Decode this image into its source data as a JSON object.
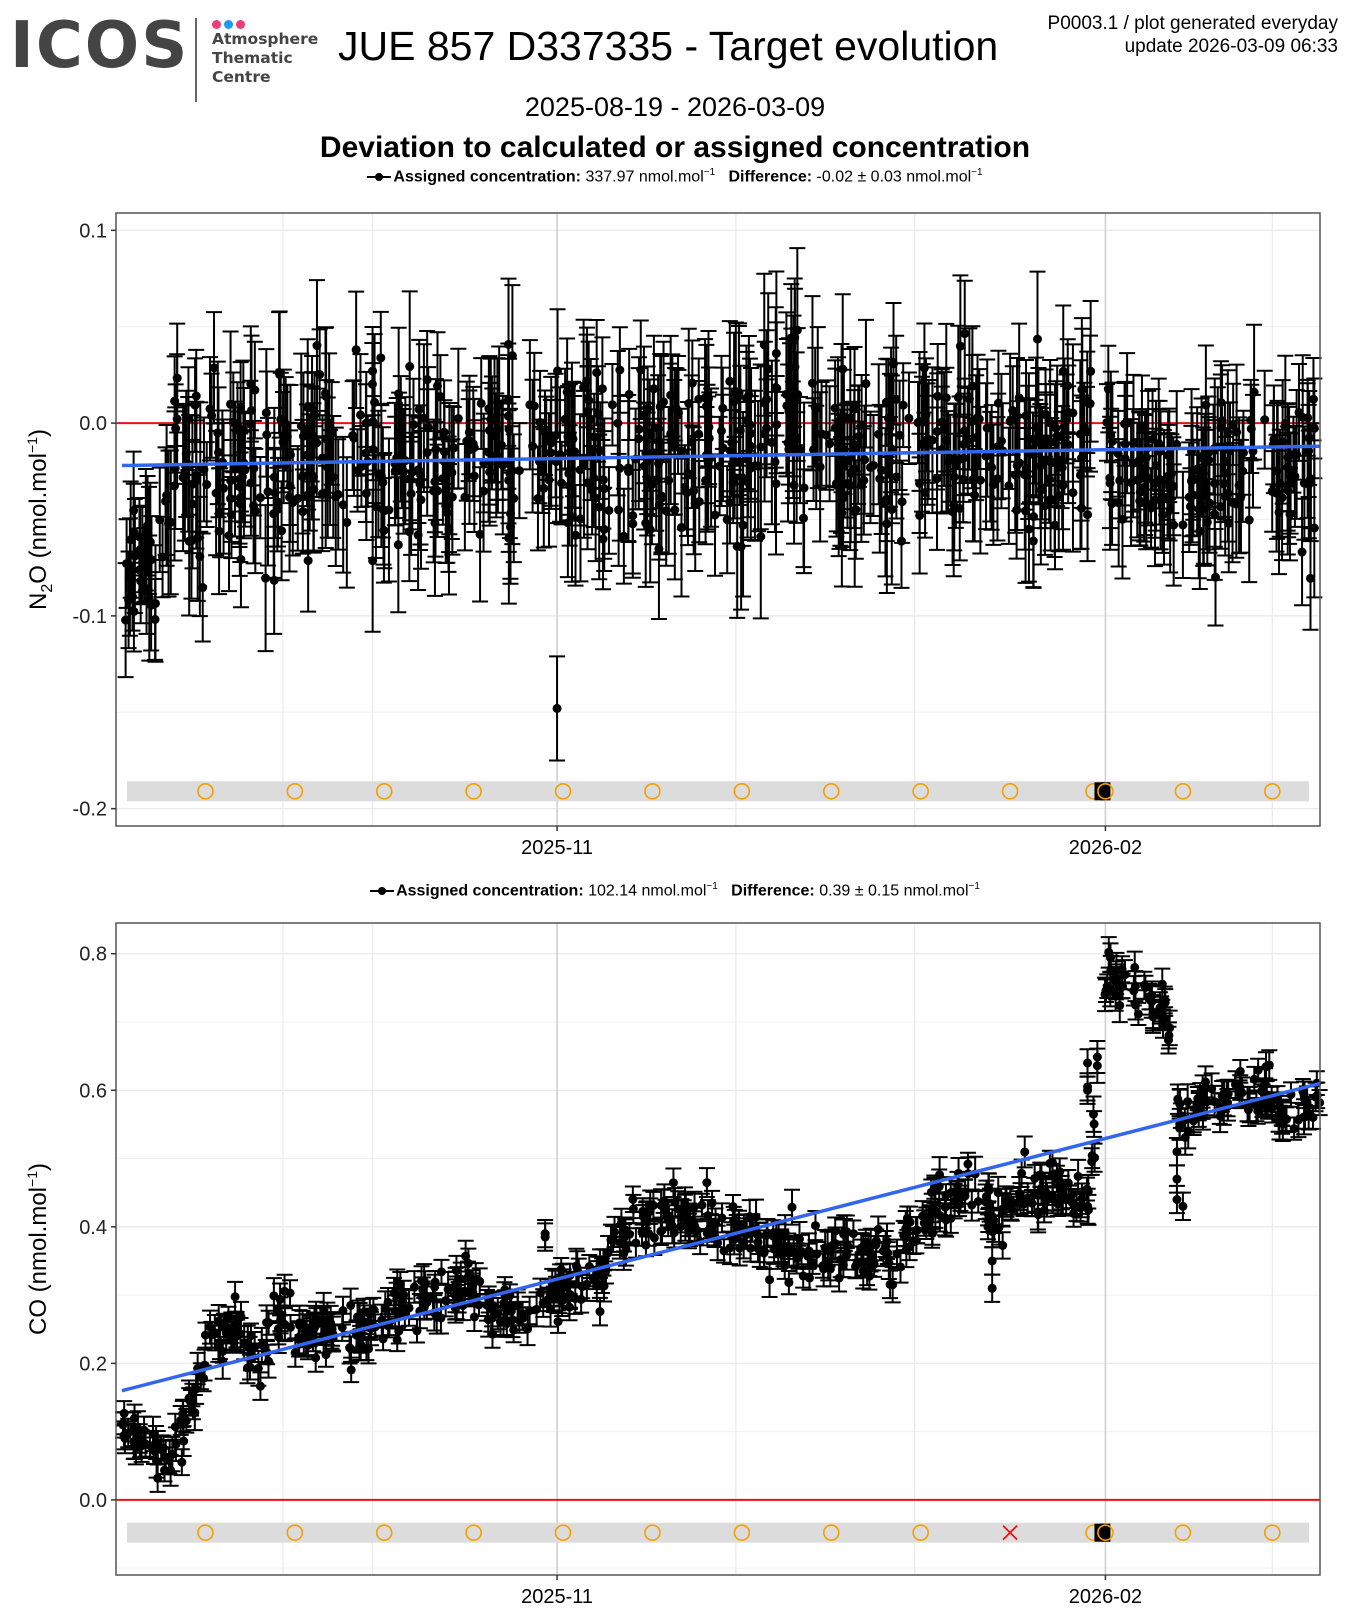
{
  "header": {
    "logo_text": "ICOS",
    "logo_subtitle": [
      "Atmosphere",
      "Thematic",
      "Centre"
    ],
    "logo_dot_colors": [
      "#e83e7a",
      "#1e9be8",
      "#e83e7a"
    ],
    "title": "JUE 857 D337335 - Target evolution",
    "meta_line1": "P0003.1 / plot generated everyday",
    "meta_line2": "update  2026-03-09 06:33",
    "date_range": "2025-08-19 - 2026-03-09",
    "subtitle": "Deviation to calculated or assigned concentration"
  },
  "colors": {
    "points": "#000000",
    "trend": "#3366ee",
    "zero_line": "#ee1111",
    "event_marker": "#f5a000",
    "event_fail": "#ee1111",
    "event_band": "#dcdcdc"
  },
  "chart_data": [
    {
      "type": "scatter",
      "gas": "N2O",
      "ylabel": "N2O (nmol.mol-1)",
      "ylabel_main": "N",
      "ylabel_sub": "2",
      "ylabel_rest": "O (nmol.mol",
      "legend": {
        "assigned_label": "Assigned concentration:",
        "assigned_value": "337.97 nmol.mol",
        "difference_label": "Difference:",
        "difference_value": "-0.02 ± 0.03 nmol.mol",
        "exponent": "−1"
      },
      "xlim": [
        "2025-08-19",
        "2026-03-09"
      ],
      "ylim": [
        -0.209,
        0.109
      ],
      "yticks": [
        0.1,
        0.0,
        -0.1,
        -0.2
      ],
      "ytick_labels": [
        "0.1",
        "0.0",
        "-0.1",
        "-0.2"
      ],
      "xticks": [
        "2025-11-01",
        "2026-02-01"
      ],
      "xtick_labels": [
        "2025-11",
        "2026-02"
      ],
      "trend": {
        "start": [
          "2025-08-20",
          -0.022
        ],
        "end": [
          "2026-03-09",
          -0.012
        ]
      },
      "reference_line": 0.0,
      "outlier": {
        "date": "2025-11-01",
        "value": -0.148,
        "err": 0.027
      },
      "segments": [
        {
          "from": "2025-08-20",
          "to": "2025-08-27",
          "mean": -0.07,
          "sd": 0.02,
          "err": 0.025
        },
        {
          "from": "2025-08-27",
          "to": "2025-09-15",
          "mean": -0.025,
          "sd": 0.025,
          "err": 0.03
        },
        {
          "from": "2025-09-15",
          "to": "2025-10-15",
          "mean": -0.018,
          "sd": 0.022,
          "err": 0.03
        },
        {
          "from": "2025-10-15",
          "to": "2025-12-05",
          "mean": -0.018,
          "sd": 0.022,
          "err": 0.03
        },
        {
          "from": "2025-12-05",
          "to": "2025-12-15",
          "mean": 0.005,
          "sd": 0.03,
          "err": 0.035
        },
        {
          "from": "2025-12-15",
          "to": "2026-01-30",
          "mean": -0.015,
          "sd": 0.022,
          "err": 0.03
        },
        {
          "from": "2026-02-01",
          "to": "2026-03-09",
          "mean": -0.025,
          "sd": 0.02,
          "err": 0.028
        }
      ],
      "band_value": -0.191,
      "events": [
        {
          "date": "2025-09-03",
          "type": "circle"
        },
        {
          "date": "2025-09-18",
          "type": "circle"
        },
        {
          "date": "2025-10-03",
          "type": "circle"
        },
        {
          "date": "2025-10-18",
          "type": "circle"
        },
        {
          "date": "2025-11-02",
          "type": "circle"
        },
        {
          "date": "2025-11-17",
          "type": "circle"
        },
        {
          "date": "2025-12-02",
          "type": "circle"
        },
        {
          "date": "2025-12-17",
          "type": "circle"
        },
        {
          "date": "2026-01-01",
          "type": "circle"
        },
        {
          "date": "2026-01-16",
          "type": "circle"
        },
        {
          "date": "2026-01-30",
          "type": "circle"
        },
        {
          "date": "2026-01-31",
          "type": "square"
        },
        {
          "date": "2026-02-01",
          "type": "square"
        },
        {
          "date": "2026-02-01",
          "type": "circle"
        },
        {
          "date": "2026-02-14",
          "type": "circle"
        },
        {
          "date": "2026-03-01",
          "type": "circle"
        }
      ]
    },
    {
      "type": "scatter",
      "gas": "CO",
      "ylabel": "CO (nmol.mol-1)",
      "ylabel_main": "CO (nmol.mol",
      "ylabel_sub": "",
      "ylabel_rest": "",
      "legend": {
        "assigned_label": "Assigned concentration:",
        "assigned_value": "102.14 nmol.mol",
        "difference_label": "Difference:",
        "difference_value": "0.39 ± 0.15 nmol.mol",
        "exponent": "−1"
      },
      "xlim": [
        "2025-08-19",
        "2026-03-09"
      ],
      "ylim": [
        -0.11,
        0.845
      ],
      "yticks": [
        0.8,
        0.6,
        0.4,
        0.2,
        0.0
      ],
      "ytick_labels": [
        "0.8",
        "0.6",
        "0.4",
        "0.2",
        "0.0"
      ],
      "xticks": [
        "2025-11-01",
        "2026-02-01"
      ],
      "xtick_labels": [
        "2025-11",
        "2026-02"
      ],
      "trend": {
        "start": [
          "2025-08-20",
          0.16
        ],
        "end": [
          "2026-03-09",
          0.61
        ]
      },
      "reference_line": 0.0,
      "profile": [
        [
          "2025-08-20",
          0.12
        ],
        [
          "2025-08-25",
          0.08
        ],
        [
          "2025-08-28",
          0.07
        ],
        [
          "2025-08-31",
          0.12
        ],
        [
          "2025-09-03",
          0.22
        ],
        [
          "2025-09-08",
          0.25
        ],
        [
          "2025-09-12",
          0.21
        ],
        [
          "2025-09-16",
          0.28
        ],
        [
          "2025-09-20",
          0.25
        ],
        [
          "2025-09-28",
          0.24
        ],
        [
          "2025-10-05",
          0.28
        ],
        [
          "2025-10-12",
          0.3
        ],
        [
          "2025-10-17",
          0.31
        ],
        [
          "2025-10-22",
          0.27
        ],
        [
          "2025-10-27",
          0.26
        ],
        [
          "2025-11-02",
          0.31
        ],
        [
          "2025-11-08",
          0.34
        ],
        [
          "2025-11-14",
          0.41
        ],
        [
          "2025-11-20",
          0.42
        ],
        [
          "2025-11-26",
          0.4
        ],
        [
          "2025-12-02",
          0.39
        ],
        [
          "2025-12-08",
          0.37
        ],
        [
          "2025-12-14",
          0.35
        ],
        [
          "2025-12-20",
          0.38
        ],
        [
          "2025-12-26",
          0.36
        ],
        [
          "2025-12-30",
          0.38
        ],
        [
          "2026-01-04",
          0.44
        ],
        [
          "2026-01-10",
          0.45
        ],
        [
          "2026-01-14",
          0.41
        ],
        [
          "2026-01-18",
          0.44
        ],
        [
          "2026-01-24",
          0.46
        ],
        [
          "2026-01-29",
          0.43
        ],
        [
          "2026-02-01",
          0.77
        ],
        [
          "2026-02-06",
          0.74
        ],
        [
          "2026-02-11",
          0.72
        ],
        [
          "2026-02-14",
          0.55
        ],
        [
          "2026-02-16",
          0.57
        ],
        [
          "2026-02-22",
          0.6
        ],
        [
          "2026-02-28",
          0.59
        ],
        [
          "2026-03-02",
          0.56
        ],
        [
          "2026-03-09",
          0.56
        ]
      ],
      "noise_sd": 0.02,
      "err": 0.02,
      "extra_points": [
        {
          "date": "2025-10-30",
          "value": 0.385
        },
        {
          "date": "2025-10-30",
          "value": 0.39
        },
        {
          "date": "2026-01-29",
          "value": 0.64
        },
        {
          "date": "2026-01-29",
          "value": 0.605
        },
        {
          "date": "2026-01-29",
          "value": 0.6
        },
        {
          "date": "2026-02-13",
          "value": 0.44
        },
        {
          "date": "2026-02-13",
          "value": 0.47
        },
        {
          "date": "2026-02-13",
          "value": 0.51
        },
        {
          "date": "2026-02-14",
          "value": 0.43
        },
        {
          "date": "2026-01-13",
          "value": 0.31
        },
        {
          "date": "2026-01-13",
          "value": 0.35
        }
      ],
      "band_value": -0.048,
      "events": [
        {
          "date": "2025-09-03",
          "type": "circle"
        },
        {
          "date": "2025-09-18",
          "type": "circle"
        },
        {
          "date": "2025-10-03",
          "type": "circle"
        },
        {
          "date": "2025-10-18",
          "type": "circle"
        },
        {
          "date": "2025-11-02",
          "type": "circle"
        },
        {
          "date": "2025-11-17",
          "type": "circle"
        },
        {
          "date": "2025-12-02",
          "type": "circle"
        },
        {
          "date": "2025-12-17",
          "type": "circle"
        },
        {
          "date": "2026-01-01",
          "type": "circle"
        },
        {
          "date": "2026-01-16",
          "type": "cross"
        },
        {
          "date": "2026-01-30",
          "type": "circle"
        },
        {
          "date": "2026-01-31",
          "type": "square"
        },
        {
          "date": "2026-02-01",
          "type": "square"
        },
        {
          "date": "2026-02-01",
          "type": "circle"
        },
        {
          "date": "2026-02-14",
          "type": "circle"
        },
        {
          "date": "2026-03-01",
          "type": "circle"
        }
      ]
    }
  ]
}
